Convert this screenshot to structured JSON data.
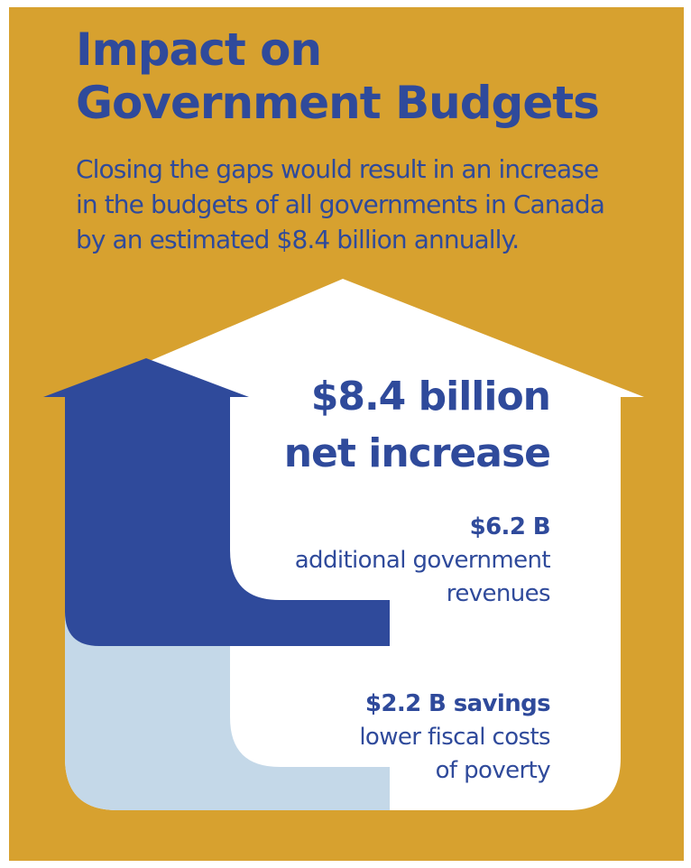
{
  "title": {
    "line1": "Impact on",
    "line2": "Government Budgets"
  },
  "subtitle": {
    "line1": "Closing the gaps would result in an increase",
    "line2": "in the budgets of all governments in Canada",
    "line3": "by an estimated $8.4 billion annually."
  },
  "headline": {
    "line1": "$8.4 billion",
    "line2": "net increase"
  },
  "revenue": {
    "amount": "$6.2 B",
    "desc_line1": "additional government",
    "desc_line2": "revenues"
  },
  "savings": {
    "amount": "$2.2 B savings",
    "desc_line1": "lower fiscal costs",
    "desc_line2": "of poverty"
  },
  "colors": {
    "background": "#D7A12F",
    "house": "#FFFFFF",
    "arrow_dark": "#2F4A9B",
    "arrow_light": "#C4D8E8",
    "text": "#2F4A9B"
  }
}
